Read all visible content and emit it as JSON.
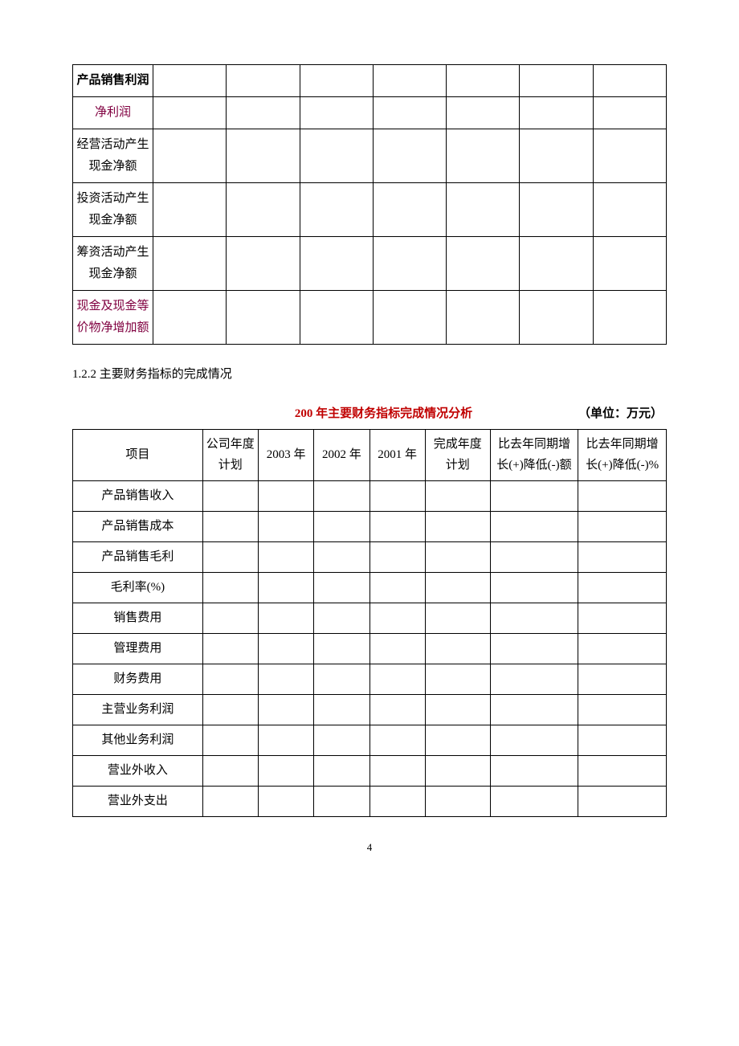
{
  "table1": {
    "rows": [
      {
        "label": "产品销售利润",
        "classes": "bold-black"
      },
      {
        "label": "净利润",
        "classes": "highlighted"
      },
      {
        "label": "经营活动产生现金净额",
        "classes": ""
      },
      {
        "label": "投资活动产生现金净额",
        "classes": ""
      },
      {
        "label": "筹资活动产生现金净额",
        "classes": ""
      },
      {
        "label": "现金及现金等价物净增加额",
        "classes": "highlighted"
      }
    ],
    "data_columns": 7
  },
  "section_heading": "1.2.2 主要财务指标的完成情况",
  "table2": {
    "title": "200 年主要财务指标完成情况分析",
    "unit": "（单位：万元）",
    "headers": {
      "item": "项目",
      "plan": "公司年度计划",
      "year1": "2003 年",
      "year2": "2002 年",
      "year3": "2001 年",
      "complete": "完成年度计划",
      "diff_amount": "比去年同期增长(+)降低(-)额",
      "diff_percent": "比去年同期增长(+)降低(-)%"
    },
    "rows": [
      "产品销售收入",
      "产品销售成本",
      "产品销售毛利",
      "毛利率(%)",
      "销售费用",
      "管理费用",
      "财务费用",
      "主营业务利润",
      "其他业务利润",
      "营业外收入",
      "营业外支出"
    ]
  },
  "page_number": "4"
}
